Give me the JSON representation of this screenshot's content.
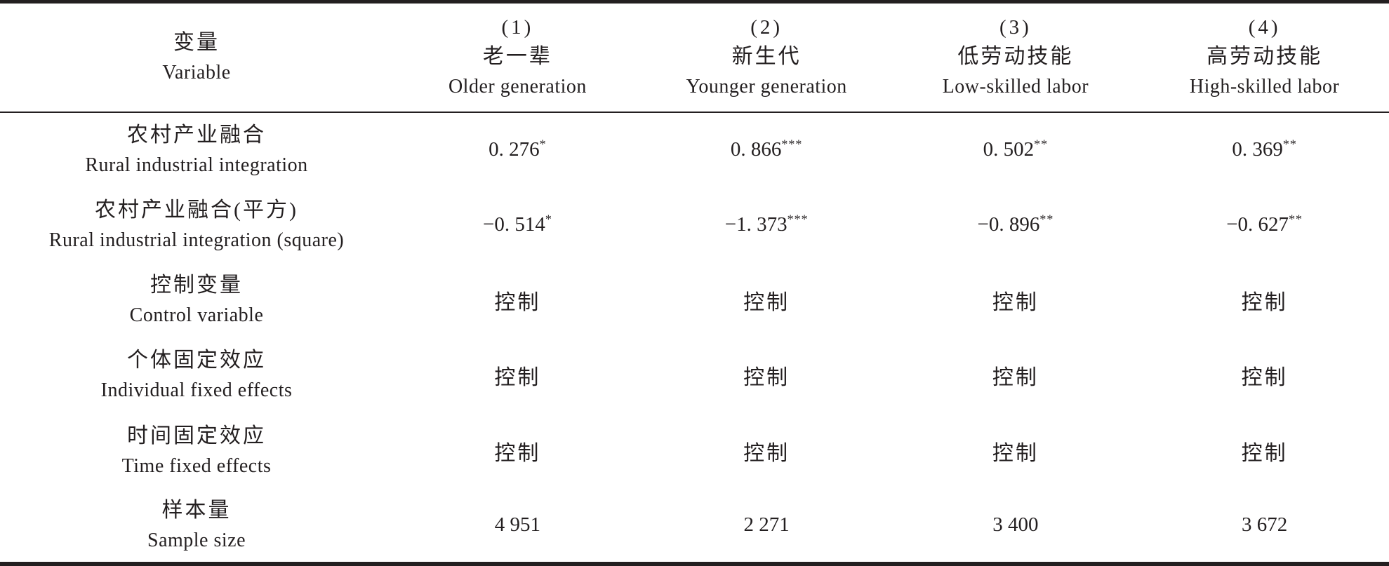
{
  "table": {
    "colors": {
      "text": "#231f20",
      "rule": "#231f20",
      "background": "#ffffff"
    },
    "header": {
      "label_zh": "变量",
      "label_en": "Variable"
    },
    "columns": [
      {
        "num": "(1)",
        "zh": "老一辈",
        "en": "Older generation"
      },
      {
        "num": "(2)",
        "zh": "新生代",
        "en": "Younger generation"
      },
      {
        "num": "(3)",
        "zh": "低劳动技能",
        "en": "Low-skilled labor"
      },
      {
        "num": "(4)",
        "zh": "高劳动技能",
        "en": "High-skilled labor"
      }
    ],
    "rows": [
      {
        "label_zh": "农村产业融合",
        "label_en": "Rural industrial integration",
        "cells": [
          {
            "v": "0. 276",
            "sup": "*"
          },
          {
            "v": "0. 866",
            "sup": "***"
          },
          {
            "v": "0. 502",
            "sup": "**"
          },
          {
            "v": "0. 369",
            "sup": "**"
          }
        ]
      },
      {
        "label_zh": "农村产业融合(平方)",
        "label_en": "Rural industrial integration (square)",
        "cells": [
          {
            "v": "−0. 514",
            "sup": "*"
          },
          {
            "v": "−1. 373",
            "sup": "***"
          },
          {
            "v": "−0. 896",
            "sup": "**"
          },
          {
            "v": "−0. 627",
            "sup": "**"
          }
        ]
      },
      {
        "label_zh": "控制变量",
        "label_en": "Control variable",
        "cells": [
          {
            "v": "控制"
          },
          {
            "v": "控制"
          },
          {
            "v": "控制"
          },
          {
            "v": "控制"
          }
        ]
      },
      {
        "label_zh": "个体固定效应",
        "label_en": "Individual fixed effects",
        "cells": [
          {
            "v": "控制"
          },
          {
            "v": "控制"
          },
          {
            "v": "控制"
          },
          {
            "v": "控制"
          }
        ]
      },
      {
        "label_zh": "时间固定效应",
        "label_en": "Time fixed effects",
        "cells": [
          {
            "v": "控制"
          },
          {
            "v": "控制"
          },
          {
            "v": "控制"
          },
          {
            "v": "控制"
          }
        ]
      },
      {
        "label_zh": "样本量",
        "label_en": "Sample size",
        "cells": [
          {
            "v": "4 951"
          },
          {
            "v": "2 271"
          },
          {
            "v": "3 400"
          },
          {
            "v": "3 672"
          }
        ]
      }
    ]
  }
}
